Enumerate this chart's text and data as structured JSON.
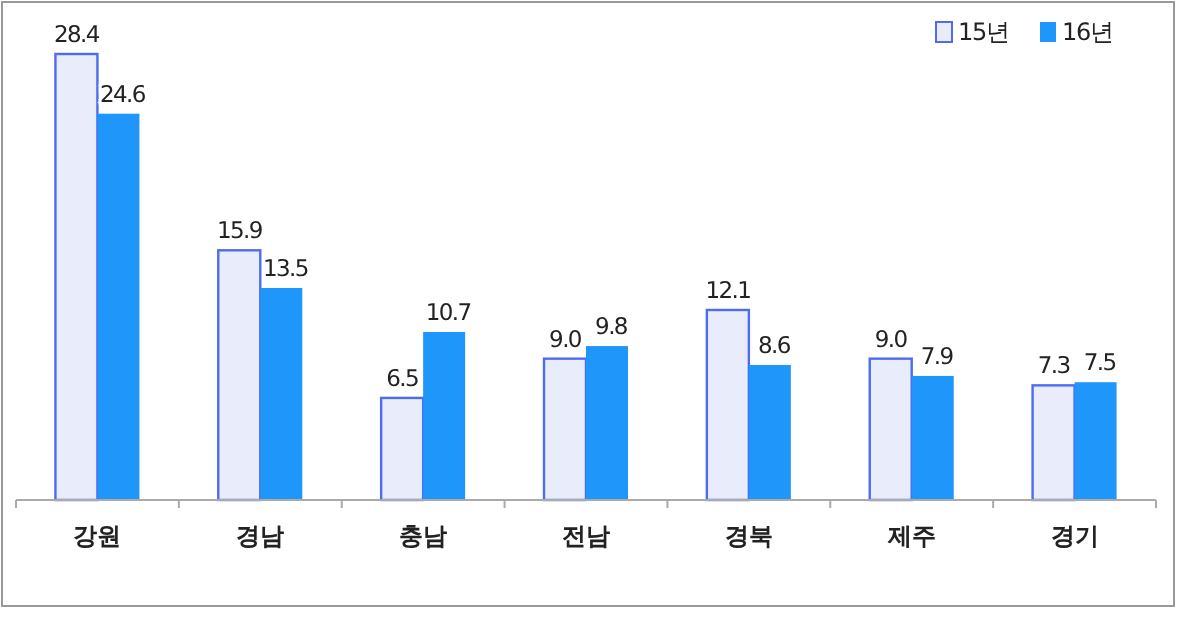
{
  "chart_data": {
    "type": "bar",
    "categories": [
      "강원",
      "경남",
      "충남",
      "전남",
      "경북",
      "제주",
      "경기"
    ],
    "series": [
      {
        "name": "15년",
        "color": "#e8ecfb",
        "values": [
          28.4,
          15.9,
          6.5,
          9.0,
          12.1,
          9.0,
          7.3
        ],
        "value_labels": [
          "28.4",
          "15.9",
          "6.5",
          "9.0",
          "12.1",
          "9.0",
          "7.3"
        ]
      },
      {
        "name": "16년",
        "color": "#1e96fa",
        "values": [
          24.6,
          13.5,
          10.7,
          9.8,
          8.6,
          7.9,
          7.5
        ],
        "value_labels": [
          "24.6",
          "13.5",
          "10.7",
          "9.8",
          "8.6",
          "7.9",
          "7.5"
        ]
      }
    ],
    "legend": "top right",
    "grid": false
  }
}
